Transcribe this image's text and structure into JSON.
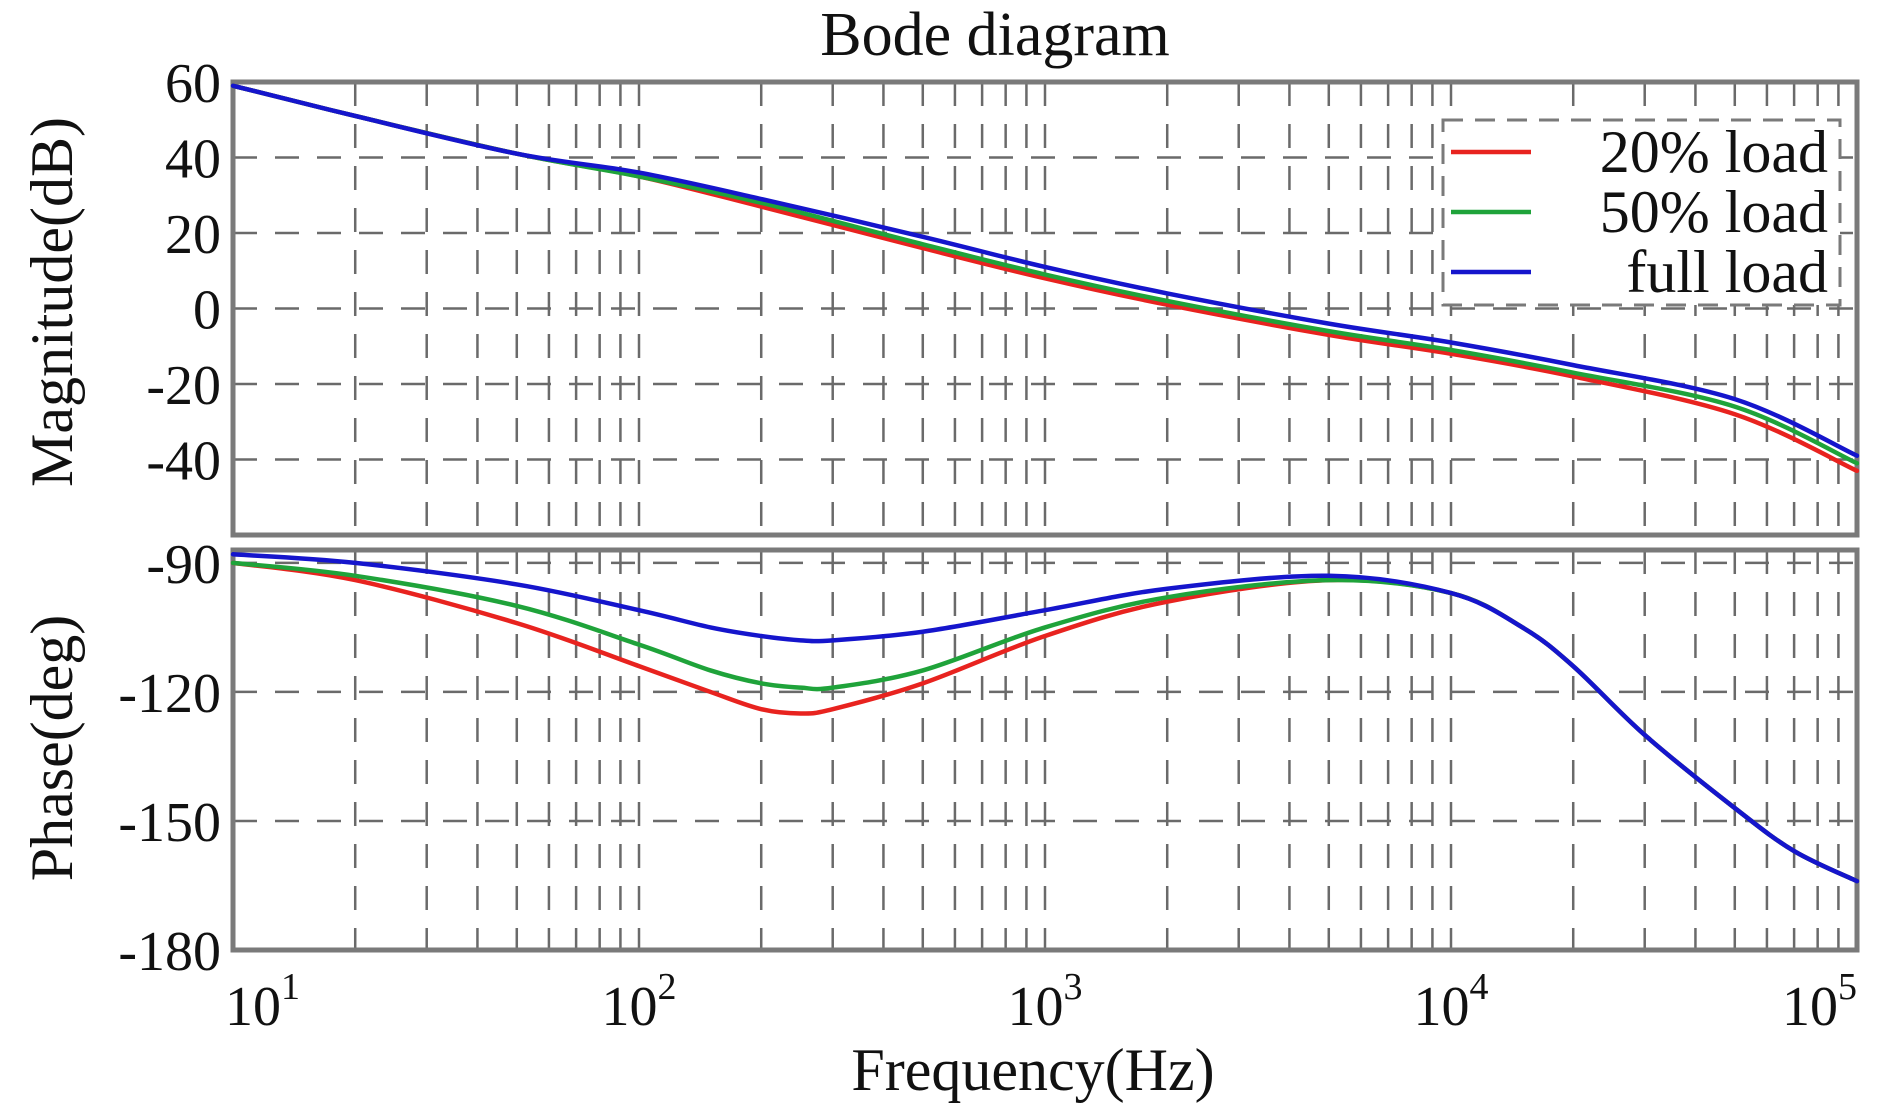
{
  "chart_data": {
    "type": "line",
    "title": "Bode diagram",
    "xlabel": "Frequency(Hz)",
    "xscale": "log",
    "xlim": [
      10,
      100000
    ],
    "x_ticks": [
      {
        "value": 10,
        "base": "10",
        "exp": "1"
      },
      {
        "value": 100,
        "base": "10",
        "exp": "2"
      },
      {
        "value": 1000,
        "base": "10",
        "exp": "3"
      },
      {
        "value": 10000,
        "base": "10",
        "exp": "4"
      },
      {
        "value": 100000,
        "base": "10",
        "exp": "5"
      }
    ],
    "grid": true,
    "legend": {
      "position": "top-right",
      "entries": [
        {
          "name": "20% load",
          "color": "#e8231f"
        },
        {
          "name": "50% load",
          "color": "#1fa33a"
        },
        {
          "name": "full load",
          "color": "#1515cc"
        }
      ]
    },
    "subplots": [
      {
        "id": "magnitude",
        "ylabel": "Magnitude(dB)",
        "ylim": [
          -60,
          60
        ],
        "y_ticks": [
          60,
          40,
          20,
          0,
          -20,
          -40
        ],
        "x": [
          10,
          20,
          50,
          100,
          200,
          500,
          1000,
          2000,
          5000,
          10000,
          20000,
          50000,
          100000
        ],
        "series": [
          {
            "name": "20% load",
            "values": [
              59,
              51,
              41,
              35,
              27,
              16,
              8,
              1,
              -7,
              -12,
              -18,
              -28,
              -43
            ]
          },
          {
            "name": "50% load",
            "values": [
              59,
              51,
              41,
              35,
              28,
              17,
              9,
              2,
              -6,
              -11,
              -17,
              -26,
              -41
            ]
          },
          {
            "name": "full load",
            "values": [
              59,
              51,
              41,
              36,
              29,
              19,
              11,
              4,
              -4,
              -9,
              -15,
              -24,
              -39
            ]
          }
        ]
      },
      {
        "id": "phase",
        "ylabel": "Phase(deg)",
        "ylim": [
          -180,
          -87
        ],
        "y_ticks": [
          -90,
          -120,
          -150,
          -180
        ],
        "x": [
          10,
          20,
          50,
          100,
          150,
          200,
          250,
          300,
          500,
          1000,
          2000,
          5000,
          10000,
          15000,
          20000,
          30000,
          50000,
          70000,
          100000
        ],
        "series": [
          {
            "name": "20% load",
            "values": [
              -90,
              -94,
              -104,
              -114,
              -120,
              -124,
              -125,
              -124,
              -118,
              -107,
              -99,
              -94,
              -97,
              -105,
              -114,
              -130,
              -147,
              -157,
              -164
            ]
          },
          {
            "name": "50% load",
            "values": [
              -90,
              -93,
              -100,
              -109,
              -115,
              -118,
              -119,
              -119,
              -115,
              -105,
              -98,
              -94,
              -97,
              -105,
              -114,
              -130,
              -147,
              -157,
              -164
            ]
          },
          {
            "name": "full load",
            "values": [
              -88,
              -90,
              -95,
              -101,
              -105,
              -107,
              -108,
              -108,
              -106,
              -101,
              -96,
              -93,
              -97,
              -105,
              -114,
              -130,
              -147,
              -157,
              -164
            ]
          }
        ]
      }
    ]
  }
}
